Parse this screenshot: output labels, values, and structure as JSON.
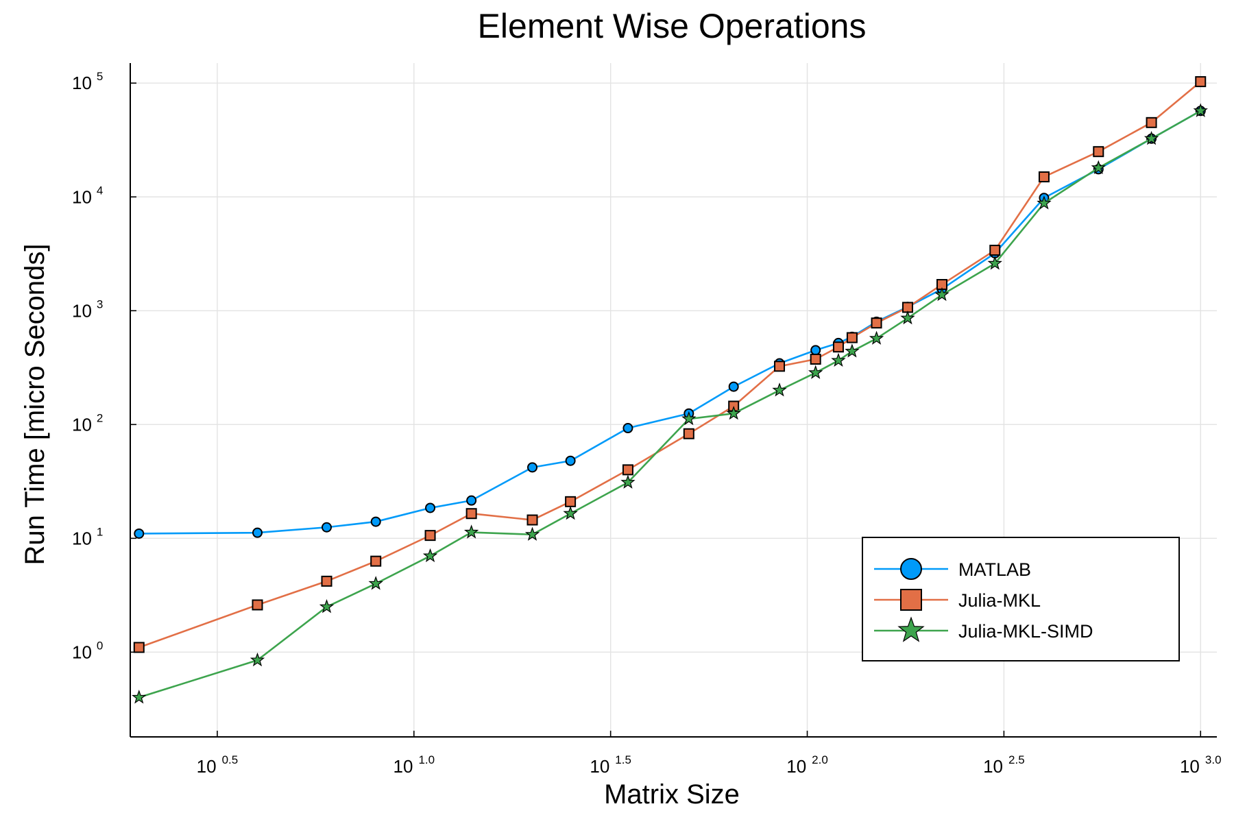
{
  "chart_data": {
    "type": "line",
    "title": "Element Wise Operations",
    "xlabel": "Matrix Size",
    "ylabel": "Run Time  [micro Seconds]",
    "xscale": "log10",
    "yscale": "log10",
    "xlim": [
      1.9,
      1100
    ],
    "ylim": [
      0.18,
      150000
    ],
    "grid": true,
    "legend_position": "bottom-right",
    "x_ticks": [
      {
        "value": 3.1623,
        "base": "10",
        "exp": "0.5"
      },
      {
        "value": 10,
        "base": "10",
        "exp": "1.0"
      },
      {
        "value": 31.623,
        "base": "10",
        "exp": "1.5"
      },
      {
        "value": 100,
        "base": "10",
        "exp": "2.0"
      },
      {
        "value": 316.23,
        "base": "10",
        "exp": "2.5"
      },
      {
        "value": 1000,
        "base": "10",
        "exp": "3.0"
      }
    ],
    "y_ticks": [
      {
        "value": 1,
        "base": "10",
        "exp": "0"
      },
      {
        "value": 10,
        "base": "10",
        "exp": "1"
      },
      {
        "value": 100,
        "base": "10",
        "exp": "2"
      },
      {
        "value": 1000,
        "base": "10",
        "exp": "3"
      },
      {
        "value": 10000,
        "base": "10",
        "exp": "4"
      },
      {
        "value": 100000,
        "base": "10",
        "exp": "5"
      }
    ],
    "x": [
      2,
      4,
      6,
      8,
      11,
      14,
      20,
      25,
      35,
      50,
      65,
      85,
      105,
      120,
      130,
      150,
      180,
      220,
      300,
      400,
      550,
      750,
      1000
    ],
    "series": [
      {
        "name": "MATLAB",
        "color": "#009af9",
        "marker": "circle",
        "values": [
          11,
          11.2,
          12.5,
          14,
          18.5,
          21.5,
          42,
          48,
          93,
          125,
          215,
          345,
          450,
          520,
          590,
          800,
          1080,
          1550,
          3200,
          9800,
          17500,
          32500,
          57000
        ]
      },
      {
        "name": "Julia-MKL",
        "color": "#e26f46",
        "marker": "square",
        "values": [
          1.1,
          2.6,
          4.2,
          6.3,
          10.6,
          16.5,
          14.5,
          21,
          40,
          83,
          145,
          325,
          375,
          480,
          580,
          780,
          1070,
          1700,
          3400,
          15000,
          25000,
          45000,
          103000
        ]
      },
      {
        "name": "Julia-MKL-SIMD",
        "color": "#3da44d",
        "marker": "star",
        "values": [
          0.4,
          0.85,
          2.5,
          4,
          7,
          11.3,
          10.8,
          16.5,
          31,
          112,
          125,
          200,
          285,
          365,
          440,
          570,
          860,
          1380,
          2600,
          8800,
          18000,
          32500,
          57000
        ]
      }
    ]
  }
}
